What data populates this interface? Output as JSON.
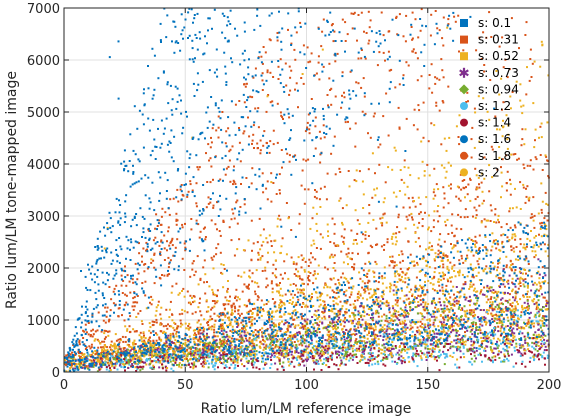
{
  "chart_data": {
    "type": "scatter",
    "title": "",
    "xlabel": "Ratio lum/LM reference image",
    "ylabel": "Ratio lum/LM tone-mapped image",
    "xlim": [
      0,
      200
    ],
    "ylim": [
      0,
      7000
    ],
    "xticks": [
      0,
      50,
      100,
      150,
      200
    ],
    "yticks": [
      0,
      1000,
      2000,
      3000,
      4000,
      5000,
      6000,
      7000
    ],
    "xtick_labels": [
      "0",
      "50",
      "100",
      "150",
      "200"
    ],
    "ytick_labels": [
      "0",
      "1000",
      "2000",
      "3000",
      "4000",
      "5000",
      "6000",
      "7000"
    ],
    "grid": true,
    "legend_position": "top-right",
    "series": [
      {
        "name": "s: 0.1",
        "color": "#0072BD",
        "marker": "square",
        "slope_range": [
          0.6,
          1.6
        ]
      },
      {
        "name": "s: 0.31",
        "color": "#D95319",
        "marker": "square",
        "slope_range": [
          1.0,
          2.5
        ]
      },
      {
        "name": "s: 0.52",
        "color": "#EDB120",
        "marker": "square",
        "slope_range": [
          0.5,
          1.5
        ]
      },
      {
        "name": "s: 0.73",
        "color": "#7E2F8E",
        "marker": "asterisk",
        "slope_range": [
          0.3,
          1.0
        ]
      },
      {
        "name": "s: 0.94",
        "color": "#77AC30",
        "marker": "diamond",
        "slope_range": [
          0.2,
          0.8
        ]
      },
      {
        "name": "s: 1.2",
        "color": "#4DBEEE",
        "marker": "circle",
        "slope_range": [
          0.1,
          0.5
        ]
      },
      {
        "name": "s: 1.4",
        "color": "#A2142F",
        "marker": "circle",
        "slope_range": [
          0.05,
          0.3
        ]
      },
      {
        "name": "s: 1.6",
        "color": "#0072BD",
        "marker": "circle",
        "slope_range": [
          1.1,
          5.0
        ],
        "min_ratio": 2.3
      },
      {
        "name": "s: 1.8",
        "color": "#D95319",
        "marker": "circle",
        "slope_range": [
          2.0,
          4.5
        ],
        "max_ratio": 2.1
      },
      {
        "name": "s: 2",
        "color": "#EDB120",
        "marker": "circle",
        "slope_range": [
          0.5,
          10.0
        ]
      }
    ]
  }
}
